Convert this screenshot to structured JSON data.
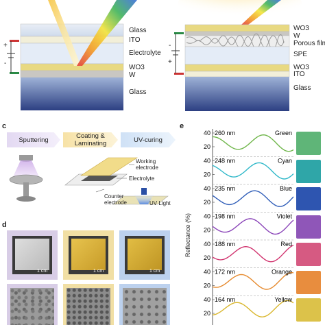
{
  "panel_a": {
    "layers": [
      "Glass",
      "ITO",
      "Electrolyte",
      "WO3",
      "W",
      "Glass"
    ],
    "plus": "+",
    "minus": "-"
  },
  "panel_b": {
    "layers": [
      "WO3",
      "W",
      "Porous film",
      "SPE",
      "WO3",
      "ITO",
      "Glass"
    ],
    "plus": "+",
    "minus": "-"
  },
  "panel_c": {
    "letter": "c",
    "steps": [
      "Sputtering",
      "Coating & Laminating",
      "UV-curing"
    ],
    "labels": {
      "working": "Working electrode",
      "electrolyte": "Electrolyte",
      "counter": "Counter electrode",
      "uv": "UV Light"
    }
  },
  "panel_d": {
    "letter": "d",
    "scale": [
      "1 cm",
      "1 cm",
      "1 cm"
    ]
  },
  "panel_e": {
    "letter": "e",
    "ylabel": "Reflectance (%)",
    "ticks": [
      "40",
      "20",
      "40",
      "20",
      "40",
      "20",
      "40",
      "20",
      "40",
      "20",
      "40",
      "20",
      "40"
    ],
    "rows": [
      {
        "thickness": "260 nm",
        "color_name": "Green",
        "line": "#6fb64a",
        "swatch": "#5fb578"
      },
      {
        "thickness": "248 nm",
        "color_name": "Cyan",
        "line": "#2fb8c9",
        "swatch": "#2fa6a8"
      },
      {
        "thickness": "235 nm",
        "color_name": "Blue",
        "line": "#2f5db8",
        "swatch": "#2e55b0"
      },
      {
        "thickness": "198 nm",
        "color_name": "Violet",
        "line": "#8a44b8",
        "swatch": "#8f56b8"
      },
      {
        "thickness": "188 nm",
        "color_name": "Red",
        "line": "#d1346f",
        "swatch": "#d65a82"
      },
      {
        "thickness": "172 nm",
        "color_name": "Orange",
        "line": "#e68a2e",
        "swatch": "#e88d3e"
      },
      {
        "thickness": "164 nm",
        "color_name": "Yellow",
        "line": "#d9b62c",
        "swatch": "#dcc24a"
      }
    ]
  }
}
